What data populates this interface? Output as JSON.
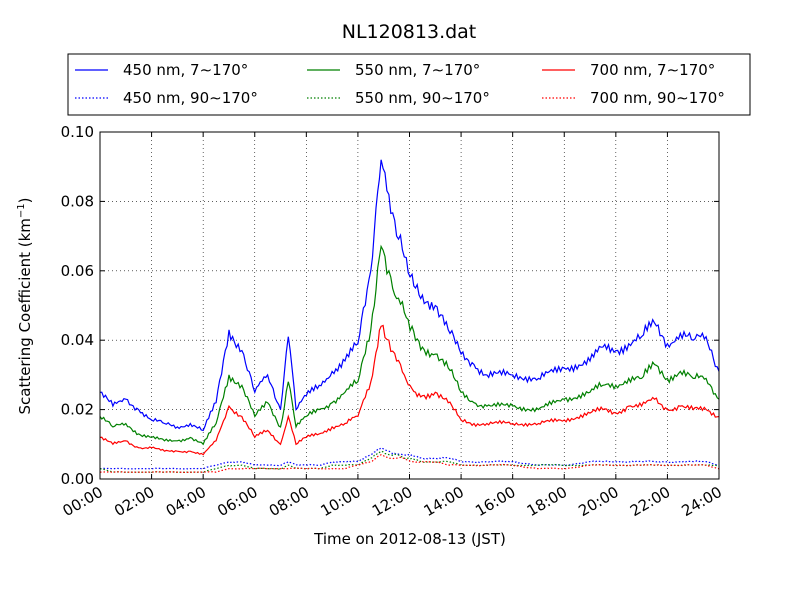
{
  "chart_data": {
    "type": "line",
    "title": "NL120813.dat",
    "xlabel": "Time on 2012-08-13 (JST)",
    "ylabel": "Scattering Coefficient (km",
    "ylabel_sup": "−1",
    "ylabel_tail": ")",
    "xlim": [
      "00:00",
      "24:00"
    ],
    "ylim": [
      0.0,
      0.1
    ],
    "grid": true,
    "legend_position": "top",
    "x_ticks": [
      "00:00",
      "02:00",
      "04:00",
      "06:00",
      "08:00",
      "10:00",
      "12:00",
      "14:00",
      "16:00",
      "18:00",
      "20:00",
      "22:00",
      "24:00"
    ],
    "y_ticks": [
      "0.00",
      "0.02",
      "0.04",
      "0.06",
      "0.08",
      "0.10"
    ],
    "x_hours": [
      0,
      0.5,
      1,
      1.5,
      2,
      2.5,
      3,
      3.5,
      4,
      4.5,
      5,
      5.5,
      6,
      6.5,
      7,
      7.3,
      7.6,
      8,
      8.5,
      9,
      9.5,
      10,
      10.5,
      10.9,
      11.2,
      11.5,
      11.8,
      12.1,
      12.5,
      13,
      13.5,
      14,
      14.5,
      15,
      16,
      17,
      18,
      19,
      19.5,
      20,
      20.5,
      21,
      21.5,
      22,
      22.5,
      23,
      23.5,
      24
    ],
    "series": [
      {
        "name": "450 nm, 7∼170°",
        "color": "#0000ff",
        "style": "solid",
        "values": [
          0.025,
          0.021,
          0.023,
          0.02,
          0.017,
          0.016,
          0.015,
          0.016,
          0.014,
          0.022,
          0.043,
          0.037,
          0.025,
          0.03,
          0.02,
          0.041,
          0.02,
          0.024,
          0.027,
          0.031,
          0.034,
          0.039,
          0.06,
          0.092,
          0.082,
          0.07,
          0.064,
          0.059,
          0.053,
          0.05,
          0.043,
          0.036,
          0.033,
          0.03,
          0.03,
          0.029,
          0.032,
          0.034,
          0.038,
          0.037,
          0.039,
          0.041,
          0.045,
          0.039,
          0.042,
          0.04,
          0.041,
          0.031
        ]
      },
      {
        "name": "550 nm, 7∼170°",
        "color": "#008000",
        "style": "solid",
        "values": [
          0.018,
          0.015,
          0.016,
          0.013,
          0.012,
          0.011,
          0.011,
          0.012,
          0.01,
          0.016,
          0.03,
          0.027,
          0.018,
          0.022,
          0.015,
          0.028,
          0.015,
          0.018,
          0.02,
          0.022,
          0.025,
          0.028,
          0.043,
          0.067,
          0.06,
          0.052,
          0.048,
          0.044,
          0.038,
          0.036,
          0.032,
          0.025,
          0.022,
          0.021,
          0.021,
          0.02,
          0.023,
          0.025,
          0.027,
          0.027,
          0.029,
          0.029,
          0.033,
          0.029,
          0.031,
          0.029,
          0.029,
          0.023
        ]
      },
      {
        "name": "700 nm, 7∼170°",
        "color": "#ff0000",
        "style": "solid",
        "values": [
          0.012,
          0.01,
          0.011,
          0.009,
          0.009,
          0.008,
          0.008,
          0.008,
          0.007,
          0.011,
          0.021,
          0.018,
          0.012,
          0.014,
          0.01,
          0.018,
          0.01,
          0.012,
          0.013,
          0.015,
          0.016,
          0.018,
          0.028,
          0.044,
          0.04,
          0.034,
          0.03,
          0.026,
          0.024,
          0.025,
          0.022,
          0.017,
          0.016,
          0.016,
          0.016,
          0.016,
          0.017,
          0.019,
          0.02,
          0.019,
          0.021,
          0.021,
          0.023,
          0.02,
          0.021,
          0.02,
          0.02,
          0.018
        ]
      },
      {
        "name": "450 nm, 90∼170°",
        "color": "#0000ff",
        "style": "dotted",
        "values": [
          0.003,
          0.003,
          0.003,
          0.003,
          0.003,
          0.003,
          0.003,
          0.003,
          0.003,
          0.004,
          0.005,
          0.005,
          0.004,
          0.004,
          0.004,
          0.005,
          0.004,
          0.004,
          0.004,
          0.005,
          0.005,
          0.005,
          0.007,
          0.009,
          0.008,
          0.007,
          0.007,
          0.007,
          0.006,
          0.006,
          0.006,
          0.005,
          0.005,
          0.005,
          0.005,
          0.004,
          0.004,
          0.005,
          0.005,
          0.005,
          0.005,
          0.005,
          0.005,
          0.005,
          0.005,
          0.005,
          0.005,
          0.004
        ]
      },
      {
        "name": "550 nm, 90∼170°",
        "color": "#008000",
        "style": "dotted",
        "values": [
          0.003,
          0.002,
          0.002,
          0.002,
          0.002,
          0.002,
          0.002,
          0.002,
          0.002,
          0.003,
          0.004,
          0.004,
          0.003,
          0.003,
          0.003,
          0.004,
          0.003,
          0.003,
          0.003,
          0.004,
          0.004,
          0.004,
          0.006,
          0.008,
          0.007,
          0.007,
          0.006,
          0.006,
          0.005,
          0.005,
          0.005,
          0.004,
          0.004,
          0.004,
          0.004,
          0.004,
          0.004,
          0.004,
          0.004,
          0.004,
          0.004,
          0.004,
          0.004,
          0.004,
          0.004,
          0.004,
          0.004,
          0.004
        ]
      },
      {
        "name": "700 nm, 90∼170°",
        "color": "#ff0000",
        "style": "dotted",
        "values": [
          0.002,
          0.002,
          0.002,
          0.002,
          0.002,
          0.002,
          0.002,
          0.002,
          0.002,
          0.002,
          0.003,
          0.003,
          0.003,
          0.003,
          0.003,
          0.003,
          0.003,
          0.003,
          0.003,
          0.003,
          0.003,
          0.004,
          0.005,
          0.007,
          0.006,
          0.006,
          0.006,
          0.005,
          0.005,
          0.005,
          0.004,
          0.004,
          0.004,
          0.004,
          0.004,
          0.003,
          0.003,
          0.004,
          0.004,
          0.004,
          0.004,
          0.004,
          0.004,
          0.004,
          0.004,
          0.004,
          0.004,
          0.003
        ]
      }
    ],
    "legend_entries": [
      {
        "label": "450 nm, 7∼170°",
        "color": "#0000ff",
        "style": "solid"
      },
      {
        "label": "550 nm, 7∼170°",
        "color": "#008000",
        "style": "solid"
      },
      {
        "label": "700 nm, 7∼170°",
        "color": "#ff0000",
        "style": "solid"
      },
      {
        "label": "450 nm, 90∼170°",
        "color": "#0000ff",
        "style": "dotted"
      },
      {
        "label": "550 nm, 90∼170°",
        "color": "#008000",
        "style": "dotted"
      },
      {
        "label": "700 nm, 90∼170°",
        "color": "#ff0000",
        "style": "dotted"
      }
    ]
  }
}
